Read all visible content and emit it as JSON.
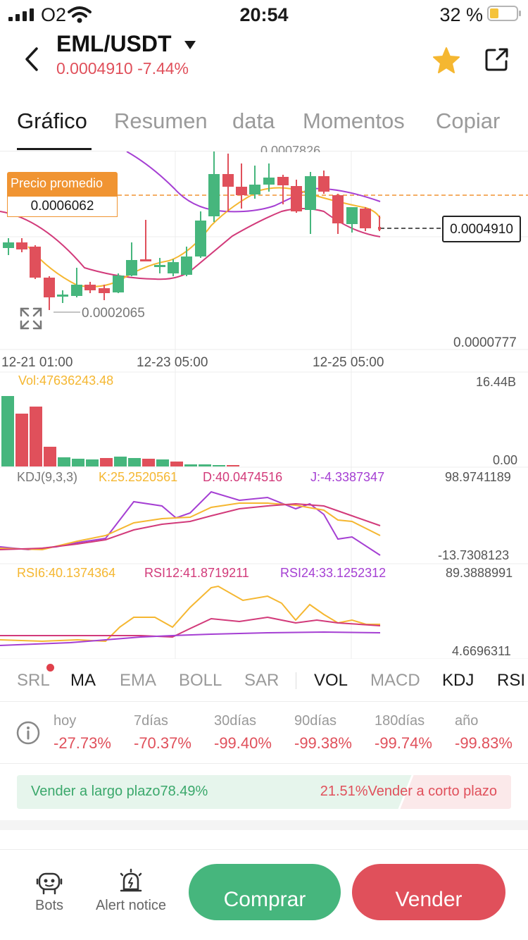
{
  "status_bar": {
    "carrier": "O2",
    "time": "20:54",
    "battery_text": "32 %"
  },
  "header": {
    "pair": "EML/USDT",
    "price": "0.0004910",
    "change": "-7.44%"
  },
  "tabs": [
    "Gráfico",
    "Resumen",
    "data",
    "Momentos",
    "Copiar"
  ],
  "chart": {
    "avg_price_title": "Precio promedio",
    "avg_price_value": "0.0006062",
    "current_price": "0.0004910",
    "top_cut_label": "0.0007826",
    "low_label": "0.0002065",
    "axis_min": "0.0000777",
    "x_ticks": [
      "12-21 01:00",
      "12-23 05:00",
      "12-25 05:00"
    ]
  },
  "volume": {
    "label": "Vol:47636243.48",
    "max": "16.44B",
    "min": "0.00"
  },
  "kdj": {
    "name": "KDJ(9,3,3)",
    "k": "K:25.2520561",
    "d": "D:40.0474516",
    "j": "J:-4.3387347",
    "max": "98.9741189",
    "min": "-13.7308123"
  },
  "rsi": {
    "rsi6": "RSI6:40.1374364",
    "rsi12": "RSI12:41.8719211",
    "rsi24": "RSI24:33.1252312",
    "max": "89.3888991",
    "min": "4.6696311"
  },
  "indicators": [
    "SRL",
    "MA",
    "EMA",
    "BOLL",
    "SAR",
    "VOL",
    "MACD",
    "KDJ",
    "RSI"
  ],
  "periods": [
    {
      "label": "hoy",
      "value": "-27.73%"
    },
    {
      "label": "7días",
      "value": "-70.37%"
    },
    {
      "label": "30días",
      "value": "-99.40%"
    },
    {
      "label": "90días",
      "value": "-99.38%"
    },
    {
      "label": "180días",
      "value": "-99.74%"
    },
    {
      "label": "año",
      "value": "-99.83%"
    }
  ],
  "sentiment": {
    "long_label": "Vender a largo plazo78.49%",
    "short_label": "21.51%Vender a corto plazo",
    "long_fraction": 0.7849
  },
  "bottom": {
    "bots": "Bots",
    "alert": "Alert notice",
    "buy": "Comprar",
    "sell": "Vender"
  },
  "colors": {
    "up": "#46b67d",
    "down": "#e0505b",
    "ma_yellow": "#f5b731",
    "ma_pink": "#d23a7a",
    "ma_purple": "#a53fd3",
    "avg_orange": "#f09432"
  },
  "icons": [
    "signal-icon",
    "wifi-icon",
    "battery-icon",
    "back-arrow-icon",
    "dropdown-caret-icon",
    "star-icon",
    "share-icon",
    "expand-icon",
    "info-icon",
    "bot-icon",
    "alert-icon"
  ]
}
